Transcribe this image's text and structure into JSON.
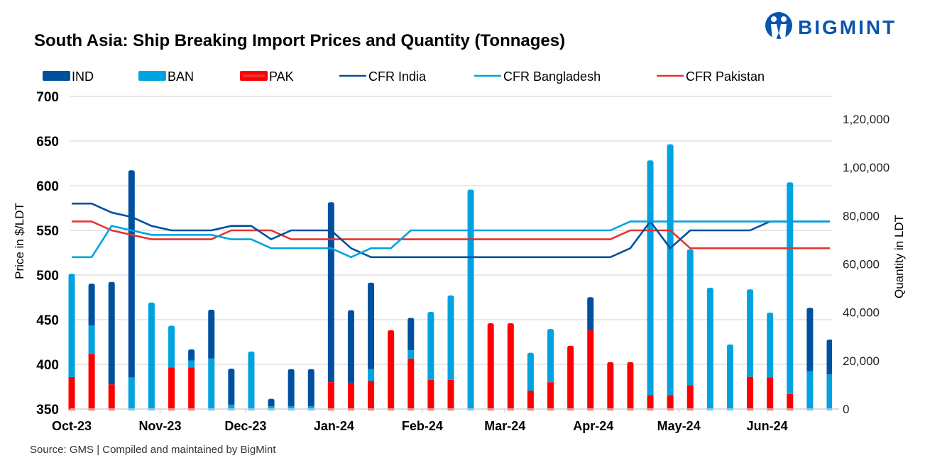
{
  "logo": {
    "text": "BIGMINT",
    "color": "#0a55b0"
  },
  "chart_data": {
    "type": "bar+line",
    "title": "South Asia: Ship Breaking Import Prices and Quantity (Tonnages)",
    "source": "Source: GMS | Compiled and maintained by BigMint",
    "ylabel": "Price in $/LDT",
    "y2label": "Quantity in LDT",
    "ylim": [
      350,
      700
    ],
    "yticks": [
      "350",
      "400",
      "450",
      "500",
      "550",
      "600",
      "650",
      "700"
    ],
    "y2lim": [
      0,
      120000
    ],
    "y2ticks": [
      "0",
      "20,000",
      "40,000",
      "60,000",
      "80,000",
      "1,00,000",
      "1,20,000"
    ],
    "xticks": [
      {
        "date": "2023-10-01",
        "label": "Oct-23"
      },
      {
        "date": "2023-11-01",
        "label": "Nov-23"
      },
      {
        "date": "2023-12-01",
        "label": "Dec-23"
      },
      {
        "date": "2024-01-01",
        "label": "Jan-24"
      },
      {
        "date": "2024-02-01",
        "label": "Feb-24"
      },
      {
        "date": "2024-03-01",
        "label": "Mar-24"
      },
      {
        "date": "2024-04-01",
        "label": "Apr-24"
      },
      {
        "date": "2024-05-01",
        "label": "May-24"
      },
      {
        "date": "2024-06-01",
        "label": "Jun-24"
      }
    ],
    "grid": true,
    "legend_position": "top",
    "x": [
      "2023-10-01",
      "2023-10-08",
      "2023-10-15",
      "2023-10-22",
      "2023-10-29",
      "2023-11-05",
      "2023-11-12",
      "2023-11-19",
      "2023-11-26",
      "2023-12-03",
      "2023-12-10",
      "2023-12-17",
      "2023-12-24",
      "2023-12-31",
      "2024-01-07",
      "2024-01-14",
      "2024-01-21",
      "2024-01-28",
      "2024-02-04",
      "2024-02-11",
      "2024-02-18",
      "2024-02-25",
      "2024-03-03",
      "2024-03-10",
      "2024-03-17",
      "2024-03-24",
      "2024-03-31",
      "2024-04-07",
      "2024-04-14",
      "2024-04-21",
      "2024-04-28",
      "2024-05-05",
      "2024-05-12",
      "2024-05-19",
      "2024-05-26",
      "2024-06-02",
      "2024-06-09",
      "2024-06-16",
      "2024-06-23"
    ],
    "bar_series": [
      {
        "name": "PAK",
        "color": "#ff0000",
        "axis": "right",
        "values": [
          13200,
          22800,
          10200,
          0,
          0,
          17200,
          17200,
          0,
          0,
          0,
          0,
          0,
          0,
          11100,
          10900,
          11600,
          32600,
          20900,
          12100,
          12100,
          0,
          35500,
          35500,
          7600,
          11100,
          26200,
          32600,
          19400,
          19400,
          5700,
          5700,
          9900,
          0,
          0,
          13300,
          13100,
          6200,
          0,
          0
        ]
      },
      {
        "name": "BAN",
        "color": "#00a3e0",
        "axis": "right",
        "values": [
          42800,
          11700,
          0,
          13100,
          44100,
          17300,
          2900,
          20900,
          1800,
          23800,
          1100,
          1100,
          1100,
          0,
          0,
          4900,
          0,
          3400,
          28100,
          34900,
          90800,
          0,
          0,
          15700,
          22000,
          0,
          0,
          0,
          0,
          97200,
          103900,
          56200,
          50200,
          26700,
          36200,
          26800,
          87600,
          15700,
          14300
        ]
      },
      {
        "name": "IND",
        "color": "#0050a0",
        "axis": "right",
        "values": [
          0,
          17400,
          42400,
          85700,
          0,
          0,
          4600,
          20200,
          14900,
          0,
          3100,
          15400,
          15400,
          74500,
          30000,
          35800,
          0,
          13400,
          0,
          0,
          0,
          0,
          0,
          0,
          0,
          0,
          13700,
          0,
          0,
          0,
          0,
          0,
          0,
          0,
          0,
          0,
          0,
          26200,
          14400
        ]
      }
    ],
    "line_series": [
      {
        "name": "CFR India",
        "color": "#0050a0",
        "axis": "left",
        "values": [
          580,
          580,
          570,
          565,
          555,
          550,
          550,
          550,
          555,
          555,
          540,
          550,
          550,
          550,
          530,
          520,
          520,
          520,
          520,
          520,
          520,
          520,
          520,
          520,
          520,
          520,
          520,
          520,
          530,
          560,
          530,
          550,
          550,
          550,
          550,
          560,
          560,
          560,
          560
        ]
      },
      {
        "name": "CFR Bangladesh",
        "color": "#00a3e0",
        "axis": "left",
        "values": [
          520,
          520,
          555,
          550,
          545,
          545,
          545,
          545,
          540,
          540,
          530,
          530,
          530,
          530,
          520,
          530,
          530,
          550,
          550,
          550,
          550,
          550,
          550,
          550,
          550,
          550,
          550,
          550,
          560,
          560,
          560,
          560,
          560,
          560,
          560,
          560,
          560,
          560,
          560
        ]
      },
      {
        "name": "CFR Pakistan",
        "color": "#e8322e",
        "axis": "left",
        "values": [
          560,
          560,
          550,
          545,
          540,
          540,
          540,
          540,
          550,
          550,
          550,
          540,
          540,
          540,
          540,
          540,
          540,
          540,
          540,
          540,
          540,
          540,
          540,
          540,
          540,
          540,
          540,
          540,
          550,
          550,
          550,
          530,
          530,
          530,
          530,
          530,
          530,
          530,
          530
        ]
      }
    ]
  }
}
